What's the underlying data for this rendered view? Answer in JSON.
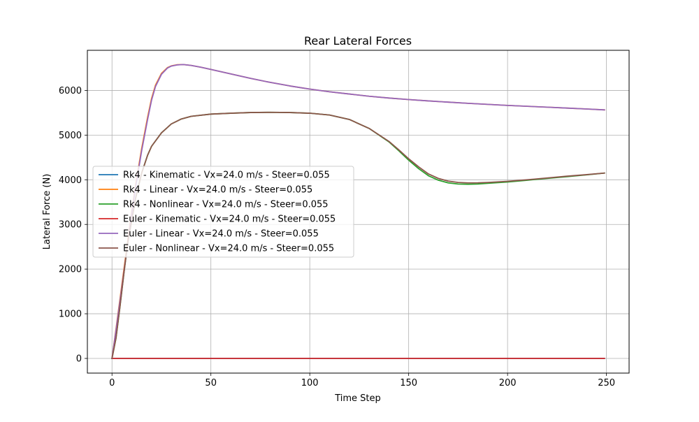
{
  "chart_data": {
    "type": "line",
    "title": "Rear Lateral Forces",
    "xlabel": "Time Step",
    "ylabel": "Lateral Force (N)",
    "xlim": [
      -12.45,
      261.45
    ],
    "ylim": [
      -328.5,
      6898.5
    ],
    "xticks": [
      0,
      50,
      100,
      150,
      200,
      250
    ],
    "yticks": [
      0,
      1000,
      2000,
      3000,
      4000,
      5000,
      6000
    ],
    "grid": true,
    "legend_position": "center-left",
    "series": [
      {
        "name": "Rk4 - Kinematic - Vx=24.0 m/s - Steer=0.055",
        "color": "#1f77b4",
        "x": [
          0,
          249
        ],
        "y": [
          0,
          0
        ]
      },
      {
        "name": "Rk4 - Linear - Vx=24.0 m/s - Steer=0.055",
        "color": "#ff7f0e",
        "x": [
          0,
          2,
          5,
          8,
          10,
          12,
          15,
          18,
          20,
          22,
          25,
          28,
          30,
          33,
          36,
          40,
          45,
          50,
          60,
          70,
          80,
          90,
          100,
          110,
          120,
          130,
          140,
          150,
          160,
          170,
          180,
          190,
          200,
          210,
          220,
          230,
          240,
          249
        ],
        "y": [
          0,
          650,
          1650,
          2650,
          3300,
          3900,
          4700,
          5400,
          5820,
          6120,
          6380,
          6510,
          6550,
          6575,
          6580,
          6560,
          6520,
          6470,
          6370,
          6270,
          6180,
          6100,
          6030,
          5970,
          5920,
          5870,
          5830,
          5795,
          5765,
          5738,
          5712,
          5688,
          5665,
          5645,
          5625,
          5605,
          5585,
          5565
        ]
      },
      {
        "name": "Rk4 - Nonlinear - Vx=24.0 m/s - Steer=0.055",
        "color": "#2ca02c",
        "x": [
          0,
          2,
          4,
          6,
          8,
          10,
          12,
          15,
          18,
          20,
          25,
          30,
          35,
          40,
          50,
          60,
          70,
          80,
          90,
          100,
          110,
          120,
          130,
          140,
          145,
          150,
          155,
          160,
          165,
          170,
          175,
          180,
          185,
          190,
          200,
          210,
          220,
          230,
          240,
          249
        ],
        "y": [
          0,
          450,
          1150,
          1900,
          2600,
          3100,
          3600,
          4150,
          4550,
          4750,
          5050,
          5250,
          5360,
          5420,
          5470,
          5490,
          5505,
          5510,
          5505,
          5490,
          5450,
          5350,
          5150,
          4850,
          4650,
          4440,
          4250,
          4090,
          3990,
          3930,
          3905,
          3900,
          3905,
          3920,
          3950,
          3990,
          4030,
          4070,
          4110,
          4150
        ]
      },
      {
        "name": "Euler - Kinematic - Vx=24.0 m/s - Steer=0.055",
        "color": "#d62728",
        "x": [
          0,
          249
        ],
        "y": [
          0,
          0
        ]
      },
      {
        "name": "Euler - Linear - Vx=24.0 m/s - Steer=0.055",
        "color": "#9467bd",
        "x": [
          0,
          2,
          5,
          8,
          10,
          12,
          15,
          18,
          20,
          22,
          25,
          28,
          30,
          33,
          36,
          40,
          45,
          50,
          60,
          70,
          80,
          90,
          100,
          110,
          120,
          130,
          140,
          150,
          160,
          170,
          180,
          190,
          200,
          210,
          220,
          230,
          240,
          249
        ],
        "y": [
          0,
          620,
          1600,
          2600,
          3250,
          3850,
          4650,
          5350,
          5780,
          6090,
          6360,
          6500,
          6545,
          6572,
          6580,
          6560,
          6520,
          6470,
          6370,
          6270,
          6180,
          6100,
          6030,
          5970,
          5920,
          5870,
          5830,
          5795,
          5765,
          5738,
          5712,
          5688,
          5665,
          5645,
          5625,
          5605,
          5585,
          5565
        ]
      },
      {
        "name": "Euler - Nonlinear - Vx=24.0 m/s - Steer=0.055",
        "color": "#8c564b",
        "x": [
          0,
          2,
          4,
          6,
          8,
          10,
          12,
          15,
          18,
          20,
          25,
          30,
          35,
          40,
          50,
          60,
          70,
          80,
          90,
          100,
          110,
          120,
          130,
          140,
          145,
          150,
          155,
          160,
          165,
          170,
          175,
          180,
          185,
          190,
          200,
          210,
          220,
          230,
          240,
          249
        ],
        "y": [
          0,
          450,
          1150,
          1900,
          2600,
          3100,
          3600,
          4150,
          4550,
          4750,
          5050,
          5250,
          5360,
          5420,
          5470,
          5490,
          5505,
          5510,
          5505,
          5490,
          5450,
          5350,
          5150,
          4860,
          4670,
          4470,
          4290,
          4130,
          4030,
          3970,
          3940,
          3930,
          3932,
          3940,
          3965,
          4000,
          4040,
          4080,
          4115,
          4150
        ]
      }
    ]
  }
}
